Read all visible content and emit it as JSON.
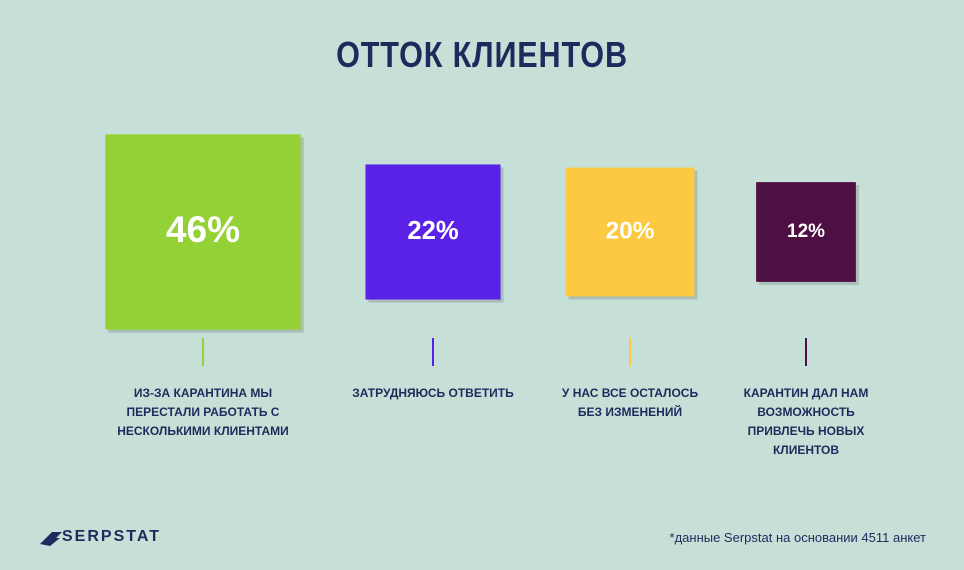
{
  "chart_data": {
    "type": "square",
    "title": "ОТТОК КЛИЕНТОВ",
    "categories": [
      "ИЗ-ЗА КАРАНТИНА МЫ ПЕРЕСТАЛИ РАБОТАТЬ С НЕСКОЛЬКИМИ КЛИЕНТАМИ",
      "ЗАТРУДНЯЮСЬ ОТВЕТИТЬ",
      "У НАС ВСЕ ОСТАЛОСЬ БЕЗ ИЗМЕНЕНИЙ",
      "КАРАНТИН ДАЛ НАМ ВОЗМОЖНОСТЬ ПРИВЛЕЧЬ НОВЫХ КЛИЕНТОВ"
    ],
    "values": [
      46,
      22,
      20,
      12
    ],
    "value_labels": [
      "46%",
      "22%",
      "20%",
      "12%"
    ],
    "colors": [
      "#93d135",
      "#5a22e6",
      "#fdc940",
      "#4e0f42"
    ]
  },
  "brand": "SERPSTAT",
  "footnote": "*данные Serpstat на основании 4511 анкет"
}
